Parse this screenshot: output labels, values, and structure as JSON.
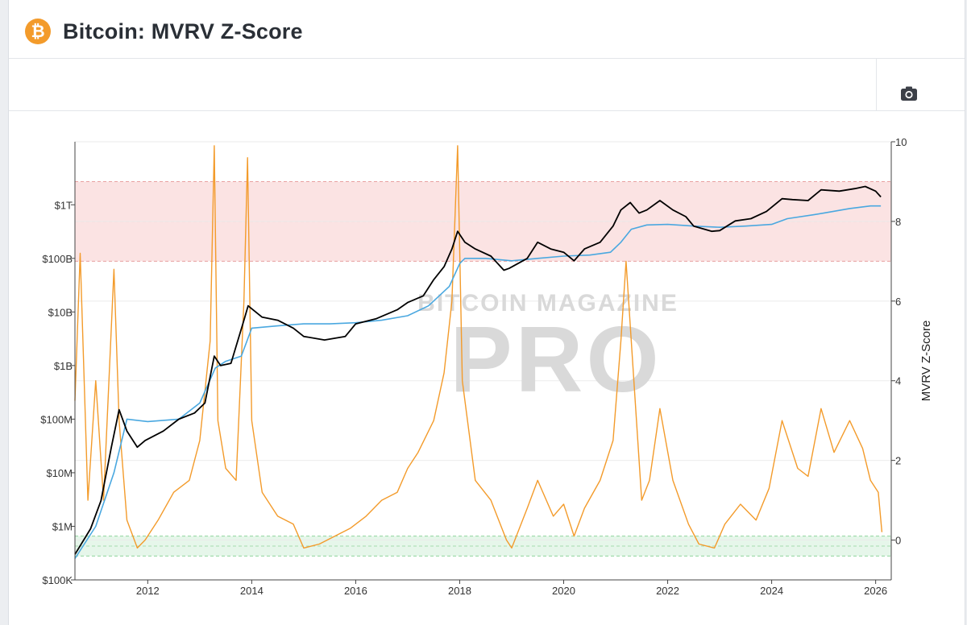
{
  "header": {
    "title": "Bitcoin: MVRV Z-Score",
    "logo_icon": "bitcoin-icon",
    "logo_glyph": "₿"
  },
  "toolbar": {
    "screenshot_icon": "camera-icon"
  },
  "colors": {
    "price": "#000000",
    "realized_price": "#4aa8e0",
    "zscore": "#f39b2b",
    "overvalued_zone": "#fbe3e3",
    "undervalued_zone": "#e6f6ea",
    "watermark": "#d9d9d9"
  },
  "chart_data": {
    "type": "line",
    "x_axis": {
      "ticks": [
        "2012",
        "2014",
        "2016",
        "2018",
        "2020",
        "2022",
        "2024",
        "2026"
      ],
      "range": [
        2010.6,
        2026.3
      ]
    },
    "y_left": {
      "scale": "log",
      "ticks": [
        "$1T",
        "$100B",
        "$10B",
        "$1B",
        "$100M",
        "$10M",
        "$1M",
        "$100K"
      ],
      "range": [
        100000,
        15000000000000
      ]
    },
    "y_right": {
      "label": "MVRV Z-Score",
      "ticks": [
        "10",
        "8",
        "6",
        "4",
        "2",
        "0"
      ],
      "range": [
        -1,
        10
      ]
    },
    "zones": [
      {
        "name": "overvalued",
        "from": 7.0,
        "to": 9.0
      },
      {
        "name": "undervalued",
        "from": -0.4,
        "to": 0.1
      }
    ],
    "watermark": {
      "line1": "BITCOIN MAGAZINE",
      "line2": "PRO"
    },
    "series": [
      {
        "key": "market_cap",
        "axis": "left",
        "x": [
          2010.6,
          2010.9,
          2011.1,
          2011.3,
          2011.45,
          2011.6,
          2011.8,
          2011.95,
          2012.3,
          2012.6,
          2012.9,
          2013.1,
          2013.28,
          2013.4,
          2013.6,
          2013.85,
          2013.93,
          2014.2,
          2014.5,
          2014.8,
          2015.0,
          2015.4,
          2015.8,
          2016.0,
          2016.4,
          2016.8,
          2017.0,
          2017.3,
          2017.5,
          2017.7,
          2017.85,
          2017.96,
          2018.1,
          2018.3,
          2018.6,
          2018.85,
          2018.95,
          2019.3,
          2019.5,
          2019.75,
          2020.0,
          2020.2,
          2020.4,
          2020.7,
          2020.95,
          2021.1,
          2021.28,
          2021.45,
          2021.6,
          2021.85,
          2022.1,
          2022.35,
          2022.5,
          2022.85,
          2023.0,
          2023.3,
          2023.6,
          2023.9,
          2024.2,
          2024.4,
          2024.7,
          2024.95,
          2025.3,
          2025.6,
          2025.8,
          2026.0,
          2026.1
        ],
        "y": [
          300000,
          900000,
          3000000,
          30000000,
          150000000,
          60000000,
          30000000,
          40000000,
          60000000,
          100000000,
          130000000,
          200000000,
          1500000000,
          1000000000,
          1100000000,
          7000000000,
          13000000000,
          8000000000,
          7000000000,
          5000000000,
          3500000000,
          3000000000,
          3500000000,
          6000000000,
          7500000000,
          11000000000,
          15000000000,
          20000000000,
          40000000000,
          70000000000,
          150000000000,
          320000000000,
          200000000000,
          150000000000,
          110000000000,
          60000000000,
          65000000000,
          100000000000,
          200000000000,
          150000000000,
          130000000000,
          90000000000,
          150000000000,
          200000000000,
          400000000000,
          800000000000,
          1100000000000,
          700000000000,
          800000000000,
          1200000000000,
          800000000000,
          600000000000,
          400000000000,
          320000000000,
          330000000000,
          500000000000,
          550000000000,
          750000000000,
          1300000000000,
          1250000000000,
          1200000000000,
          1900000000000,
          1800000000000,
          2000000000000,
          2200000000000,
          1800000000000,
          1400000000000
        ]
      },
      {
        "key": "realized_cap",
        "axis": "left",
        "x": [
          2010.6,
          2011.0,
          2011.35,
          2011.6,
          2012.0,
          2012.6,
          2013.0,
          2013.3,
          2013.5,
          2013.8,
          2014.0,
          2014.5,
          2015.0,
          2015.5,
          2016.0,
          2016.5,
          2017.0,
          2017.4,
          2017.8,
          2018.0,
          2018.1,
          2018.5,
          2019.0,
          2019.5,
          2020.0,
          2020.5,
          2020.9,
          2021.1,
          2021.3,
          2021.6,
          2022.0,
          2022.5,
          2023.0,
          2023.5,
          2024.0,
          2024.3,
          2024.8,
          2025.0,
          2025.5,
          2025.9,
          2026.1
        ],
        "y": [
          250000,
          1000000,
          10000000,
          100000000,
          90000000,
          100000000,
          200000000,
          900000000,
          1200000000,
          1500000000,
          5000000000,
          5500000000,
          6000000000,
          6000000000,
          6300000000,
          7000000000,
          8500000000,
          13000000000,
          30000000000,
          80000000000,
          100000000000,
          100000000000,
          90000000000,
          100000000000,
          110000000000,
          115000000000,
          130000000000,
          200000000000,
          350000000000,
          420000000000,
          430000000000,
          400000000000,
          380000000000,
          400000000000,
          430000000000,
          550000000000,
          650000000000,
          700000000000,
          850000000000,
          950000000000,
          950000000000
        ]
      },
      {
        "key": "mvrv_zscore",
        "axis": "right",
        "x": [
          2010.6,
          2010.7,
          2010.85,
          2011.0,
          2011.15,
          2011.35,
          2011.45,
          2011.6,
          2011.8,
          2011.95,
          2012.2,
          2012.5,
          2012.8,
          2013.0,
          2013.2,
          2013.28,
          2013.35,
          2013.5,
          2013.7,
          2013.85,
          2013.92,
          2014.0,
          2014.2,
          2014.5,
          2014.8,
          2015.0,
          2015.3,
          2015.6,
          2015.9,
          2016.2,
          2016.5,
          2016.8,
          2017.0,
          2017.2,
          2017.5,
          2017.7,
          2017.85,
          2017.96,
          2018.05,
          2018.3,
          2018.6,
          2018.9,
          2019.0,
          2019.3,
          2019.5,
          2019.8,
          2020.0,
          2020.2,
          2020.4,
          2020.7,
          2020.95,
          2021.1,
          2021.2,
          2021.35,
          2021.5,
          2021.65,
          2021.85,
          2022.1,
          2022.4,
          2022.6,
          2022.9,
          2023.1,
          2023.4,
          2023.7,
          2023.95,
          2024.2,
          2024.5,
          2024.7,
          2024.95,
          2025.2,
          2025.5,
          2025.75,
          2025.9,
          2026.05,
          2026.12
        ],
        "y": [
          3.5,
          7.2,
          1.0,
          4.0,
          1.0,
          6.8,
          3.0,
          0.5,
          -0.2,
          0.0,
          0.5,
          1.2,
          1.5,
          2.5,
          5.0,
          9.9,
          3.0,
          1.8,
          1.5,
          6.0,
          9.6,
          3.0,
          1.2,
          0.6,
          0.4,
          -0.2,
          -0.1,
          0.1,
          0.3,
          0.6,
          1.0,
          1.2,
          1.8,
          2.2,
          3.0,
          4.2,
          6.0,
          9.9,
          4.0,
          1.5,
          1.0,
          0.0,
          -0.2,
          0.8,
          1.5,
          0.6,
          0.9,
          0.1,
          0.8,
          1.5,
          2.5,
          5.0,
          7.0,
          4.0,
          1.0,
          1.5,
          3.3,
          1.5,
          0.4,
          -0.1,
          -0.2,
          0.4,
          0.9,
          0.5,
          1.3,
          3.0,
          1.8,
          1.6,
          3.3,
          2.2,
          3.0,
          2.3,
          1.5,
          1.2,
          0.2
        ]
      }
    ]
  }
}
